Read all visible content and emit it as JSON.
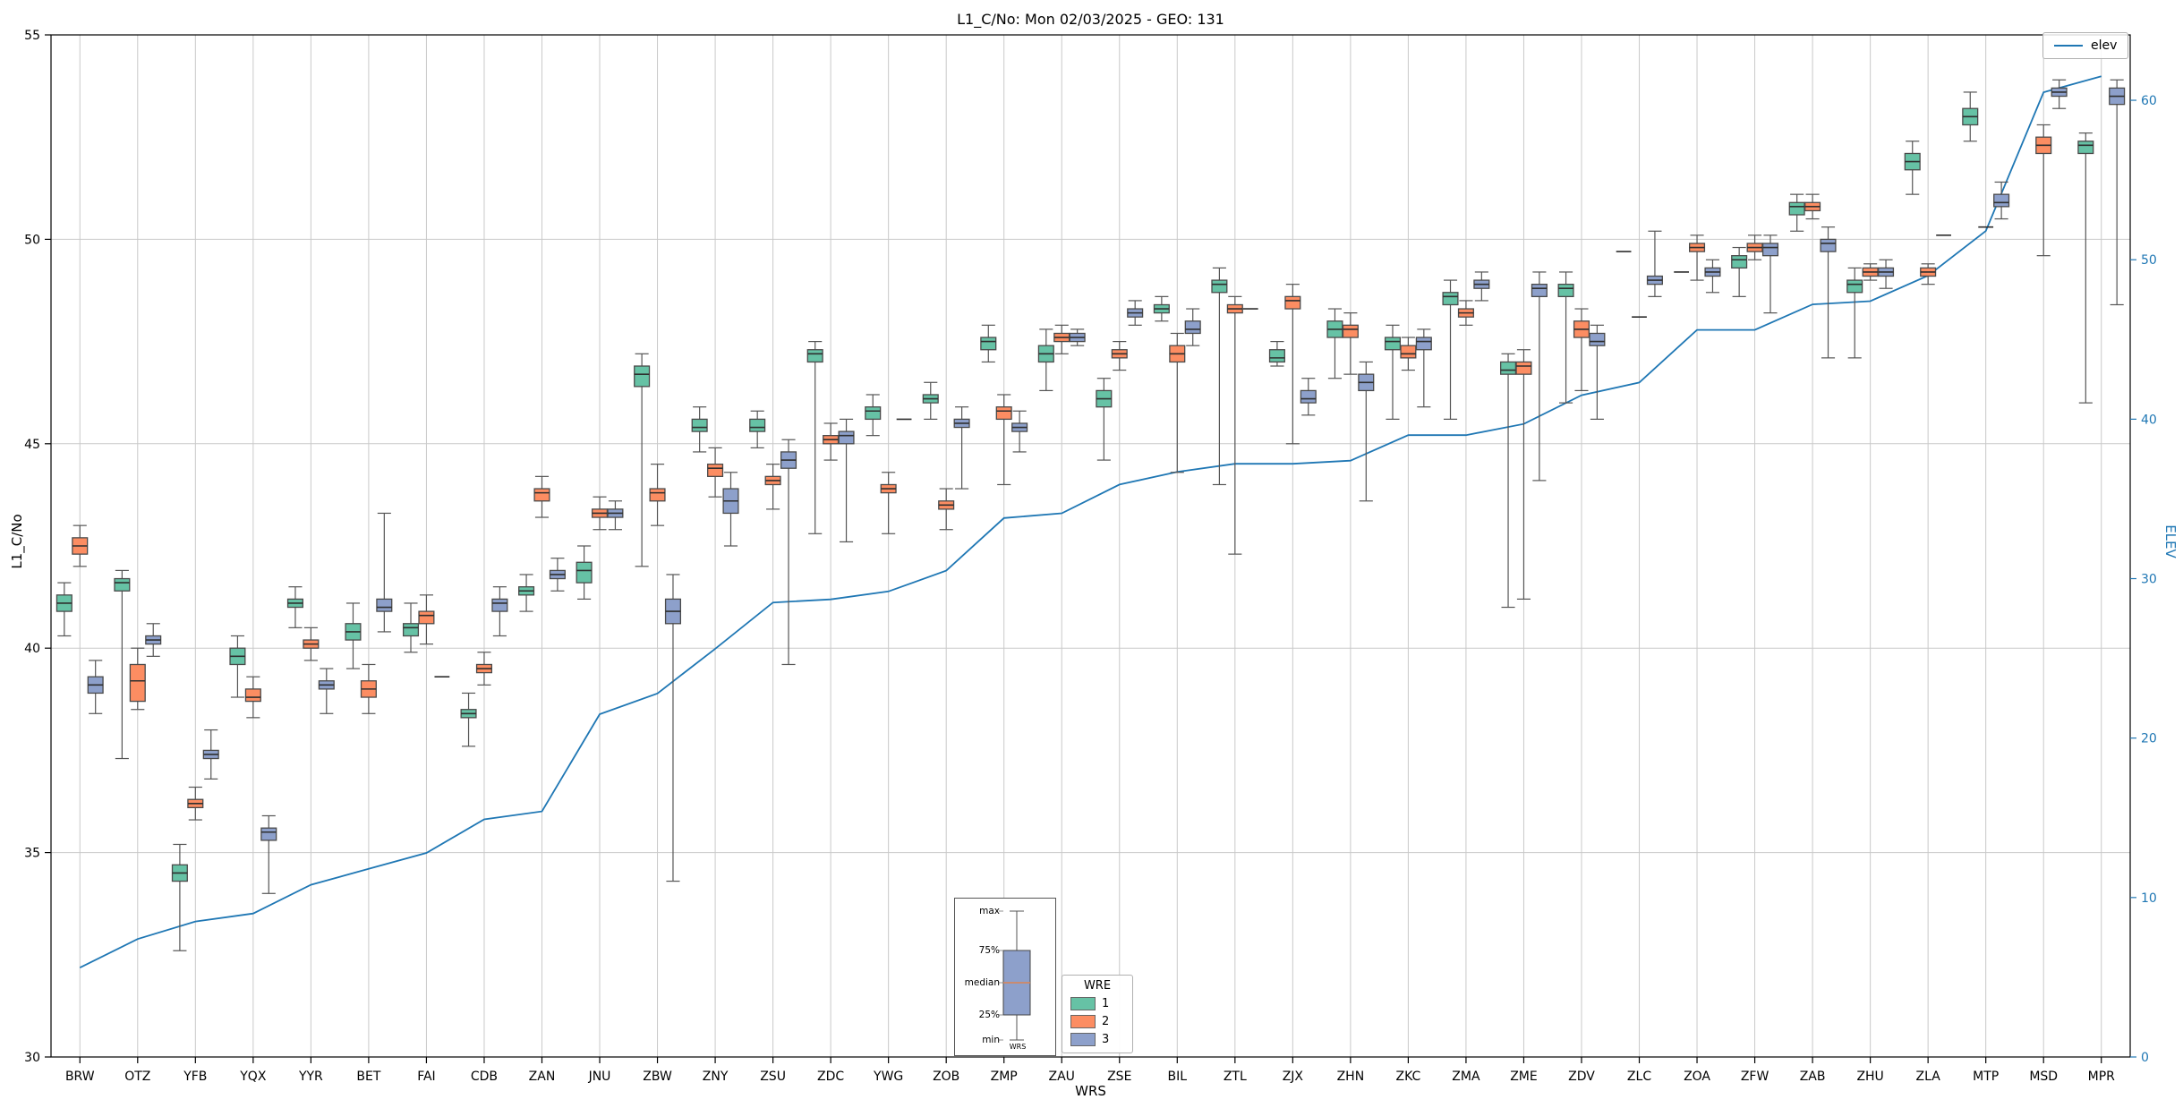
{
  "title": "L1_C/No: Mon 02/03/2025 - GEO: 131",
  "legend_elev": {
    "label": "elev"
  },
  "wre_legend": {
    "title": "WRE",
    "entries": [
      {
        "label": "1",
        "color": "#66c2a5"
      },
      {
        "label": "2",
        "color": "#fc8d62"
      },
      {
        "label": "3",
        "color": "#8da0cb"
      }
    ]
  },
  "inset": {
    "labels": {
      "max": "max",
      "p75": "75%",
      "median": "median",
      "p25": "25%",
      "min": "min"
    },
    "xlabel": "WRS",
    "box_color": "#8da0cb",
    "median_color": "#dd8452"
  },
  "colors": {
    "grid": "#c9c9c9",
    "frame": "#000000",
    "right_axis": "#1f77b4",
    "box_edge": "#4a4a4a",
    "median": "#2f2f2f",
    "whisker": "#555555"
  },
  "chart_data": {
    "type": "boxplot",
    "title": "L1_C/No: Mon 02/03/2025 - GEO: 131",
    "xlabel": "WRS",
    "ylabel": "L1_C/No",
    "y2label": "ELEV",
    "ylim": [
      30,
      55
    ],
    "yticks": [
      30,
      35,
      40,
      45,
      50,
      55
    ],
    "y2lim": [
      0,
      64.1
    ],
    "y2ticks": [
      0,
      10,
      20,
      30,
      40,
      50,
      60
    ],
    "grid": true,
    "legend_position": "lower center / upper right",
    "categories": [
      "BRW",
      "OTZ",
      "YFB",
      "YQX",
      "YYR",
      "BET",
      "FAI",
      "CDB",
      "ZAN",
      "JNU",
      "ZBW",
      "ZNY",
      "ZSU",
      "ZDC",
      "YWG",
      "ZOB",
      "ZMP",
      "ZAU",
      "ZSE",
      "BIL",
      "ZTL",
      "ZJX",
      "ZHN",
      "ZKC",
      "ZMA",
      "ZME",
      "ZDV",
      "ZLC",
      "ZOA",
      "ZFW",
      "ZAB",
      "ZHU",
      "ZLA",
      "MTP",
      "MSD",
      "MPR"
    ],
    "series": [
      {
        "name": "1",
        "color": "#66c2a5"
      },
      {
        "name": "2",
        "color": "#fc8d62"
      },
      {
        "name": "3",
        "color": "#8da0cb"
      }
    ],
    "line_series": {
      "name": "elev",
      "color": "#1f77b4",
      "axis": "right",
      "values": [
        5.6,
        7.4,
        8.5,
        9.0,
        10.8,
        11.8,
        12.8,
        14.9,
        15.4,
        21.5,
        22.8,
        25.6,
        28.5,
        28.7,
        29.2,
        30.5,
        33.8,
        34.1,
        35.9,
        36.7,
        37.2,
        37.2,
        37.4,
        39.0,
        39.0,
        39.7,
        41.5,
        42.3,
        45.6,
        45.6,
        47.2,
        47.4,
        49.0,
        51.8,
        60.5,
        61.5
      ]
    },
    "boxes": {
      "columns": [
        "category",
        "wre",
        "whisker_low",
        "q1",
        "median",
        "q3",
        "whisker_high"
      ],
      "rows": [
        [
          "BRW",
          1,
          40.3,
          40.9,
          41.1,
          41.3,
          41.6
        ],
        [
          "BRW",
          2,
          42.0,
          42.3,
          42.5,
          42.7,
          43.0
        ],
        [
          "BRW",
          3,
          38.4,
          38.9,
          39.1,
          39.3,
          39.7
        ],
        [
          "OTZ",
          1,
          37.3,
          41.4,
          41.6,
          41.7,
          41.9
        ],
        [
          "OTZ",
          2,
          38.5,
          38.7,
          39.2,
          39.6,
          40.0
        ],
        [
          "OTZ",
          3,
          39.8,
          40.1,
          40.2,
          40.3,
          40.6
        ],
        [
          "YFB",
          1,
          32.6,
          34.3,
          34.5,
          34.7,
          35.2
        ],
        [
          "YFB",
          2,
          35.8,
          36.1,
          36.2,
          36.3,
          36.6
        ],
        [
          "YFB",
          3,
          36.8,
          37.3,
          37.4,
          37.5,
          38.0
        ],
        [
          "YQX",
          1,
          38.8,
          39.6,
          39.8,
          40.0,
          40.3
        ],
        [
          "YQX",
          2,
          38.3,
          38.7,
          38.8,
          39.0,
          39.3
        ],
        [
          "YQX",
          3,
          34.0,
          35.3,
          35.5,
          35.6,
          35.9
        ],
        [
          "YYR",
          1,
          40.5,
          41.0,
          41.1,
          41.2,
          41.5
        ],
        [
          "YYR",
          2,
          39.7,
          40.0,
          40.1,
          40.2,
          40.5
        ],
        [
          "YYR",
          3,
          38.4,
          39.0,
          39.1,
          39.2,
          39.5
        ],
        [
          "BET",
          1,
          39.5,
          40.2,
          40.4,
          40.6,
          41.1
        ],
        [
          "BET",
          2,
          38.4,
          38.8,
          39.0,
          39.2,
          39.6
        ],
        [
          "BET",
          3,
          40.4,
          40.9,
          41.0,
          41.2,
          43.3
        ],
        [
          "FAI",
          1,
          39.9,
          40.3,
          40.5,
          40.6,
          41.1
        ],
        [
          "FAI",
          2,
          40.1,
          40.6,
          40.8,
          40.9,
          41.3
        ],
        [
          "FAI",
          3,
          39.3,
          39.3,
          39.3,
          39.3,
          39.3
        ],
        [
          "CDB",
          1,
          37.6,
          38.3,
          38.4,
          38.5,
          38.9
        ],
        [
          "CDB",
          2,
          39.1,
          39.4,
          39.5,
          39.6,
          39.9
        ],
        [
          "CDB",
          3,
          40.3,
          40.9,
          41.1,
          41.2,
          41.5
        ],
        [
          "ZAN",
          1,
          40.9,
          41.3,
          41.4,
          41.5,
          41.8
        ],
        [
          "ZAN",
          2,
          43.2,
          43.6,
          43.8,
          43.9,
          44.2
        ],
        [
          "ZAN",
          3,
          41.4,
          41.7,
          41.8,
          41.9,
          42.2
        ],
        [
          "JNU",
          1,
          41.2,
          41.6,
          41.9,
          42.1,
          42.5
        ],
        [
          "JNU",
          2,
          42.9,
          43.2,
          43.3,
          43.4,
          43.7
        ],
        [
          "JNU",
          3,
          42.9,
          43.2,
          43.3,
          43.4,
          43.6
        ],
        [
          "ZBW",
          1,
          42.0,
          46.4,
          46.7,
          46.9,
          47.2
        ],
        [
          "ZBW",
          2,
          43.0,
          43.6,
          43.8,
          43.9,
          44.5
        ],
        [
          "ZBW",
          3,
          34.3,
          40.6,
          40.9,
          41.2,
          41.8
        ],
        [
          "ZNY",
          1,
          44.8,
          45.3,
          45.4,
          45.6,
          45.9
        ],
        [
          "ZNY",
          2,
          43.7,
          44.2,
          44.4,
          44.5,
          44.9
        ],
        [
          "ZNY",
          3,
          42.5,
          43.3,
          43.6,
          43.9,
          44.3
        ],
        [
          "ZSU",
          1,
          44.9,
          45.3,
          45.4,
          45.6,
          45.8
        ],
        [
          "ZSU",
          2,
          43.4,
          44.0,
          44.1,
          44.2,
          44.5
        ],
        [
          "ZSU",
          3,
          39.6,
          44.4,
          44.6,
          44.8,
          45.1
        ],
        [
          "ZDC",
          1,
          42.8,
          47.0,
          47.2,
          47.3,
          47.5
        ],
        [
          "ZDC",
          2,
          44.6,
          45.0,
          45.1,
          45.2,
          45.5
        ],
        [
          "ZDC",
          3,
          42.6,
          45.0,
          45.2,
          45.3,
          45.6
        ],
        [
          "YWG",
          1,
          45.2,
          45.6,
          45.8,
          45.9,
          46.2
        ],
        [
          "YWG",
          2,
          42.8,
          43.8,
          43.9,
          44.0,
          44.3
        ],
        [
          "YWG",
          3,
          45.6,
          45.6,
          45.6,
          45.6,
          45.6
        ],
        [
          "ZOB",
          1,
          45.6,
          46.0,
          46.1,
          46.2,
          46.5
        ],
        [
          "ZOB",
          2,
          42.9,
          43.4,
          43.5,
          43.6,
          43.9
        ],
        [
          "ZOB",
          3,
          43.9,
          45.4,
          45.5,
          45.6,
          45.9
        ],
        [
          "ZMP",
          1,
          47.0,
          47.3,
          47.5,
          47.6,
          47.9
        ],
        [
          "ZMP",
          2,
          44.0,
          45.6,
          45.8,
          45.9,
          46.2
        ],
        [
          "ZMP",
          3,
          44.8,
          45.3,
          45.4,
          45.5,
          45.8
        ],
        [
          "ZAU",
          1,
          46.3,
          47.0,
          47.2,
          47.4,
          47.8
        ],
        [
          "ZAU",
          2,
          47.2,
          47.5,
          47.6,
          47.7,
          47.9
        ],
        [
          "ZAU",
          3,
          47.4,
          47.5,
          47.6,
          47.7,
          47.8
        ],
        [
          "ZSE",
          1,
          44.6,
          45.9,
          46.1,
          46.3,
          46.6
        ],
        [
          "ZSE",
          2,
          46.8,
          47.1,
          47.2,
          47.3,
          47.5
        ],
        [
          "ZSE",
          3,
          47.9,
          48.1,
          48.2,
          48.3,
          48.5
        ],
        [
          "BIL",
          1,
          48.0,
          48.2,
          48.3,
          48.4,
          48.6
        ],
        [
          "BIL",
          2,
          44.3,
          47.0,
          47.2,
          47.4,
          47.7
        ],
        [
          "BIL",
          3,
          47.4,
          47.7,
          47.8,
          48.0,
          48.3
        ],
        [
          "ZTL",
          1,
          44.0,
          48.7,
          48.9,
          49.0,
          49.3
        ],
        [
          "ZTL",
          2,
          42.3,
          48.2,
          48.3,
          48.4,
          48.6
        ],
        [
          "ZTL",
          3,
          48.3,
          48.3,
          48.3,
          48.3,
          48.3
        ],
        [
          "ZJX",
          1,
          46.9,
          47.0,
          47.1,
          47.3,
          47.5
        ],
        [
          "ZJX",
          2,
          45.0,
          48.3,
          48.5,
          48.6,
          48.9
        ],
        [
          "ZJX",
          3,
          45.7,
          46.0,
          46.1,
          46.3,
          46.6
        ],
        [
          "ZHN",
          1,
          46.6,
          47.6,
          47.8,
          48.0,
          48.3
        ],
        [
          "ZHN",
          2,
          46.7,
          47.6,
          47.8,
          47.9,
          48.2
        ],
        [
          "ZHN",
          3,
          43.6,
          46.3,
          46.5,
          46.7,
          47.0
        ],
        [
          "ZKC",
          1,
          45.6,
          47.3,
          47.5,
          47.6,
          47.9
        ],
        [
          "ZKC",
          2,
          46.8,
          47.1,
          47.2,
          47.4,
          47.6
        ],
        [
          "ZKC",
          3,
          45.9,
          47.3,
          47.5,
          47.6,
          47.8
        ],
        [
          "ZMA",
          1,
          45.6,
          48.4,
          48.6,
          48.7,
          49.0
        ],
        [
          "ZMA",
          2,
          47.9,
          48.1,
          48.2,
          48.3,
          48.5
        ],
        [
          "ZMA",
          3,
          48.5,
          48.8,
          48.9,
          49.0,
          49.2
        ],
        [
          "ZME",
          1,
          41.0,
          46.7,
          46.8,
          47.0,
          47.2
        ],
        [
          "ZME",
          2,
          41.2,
          46.7,
          46.9,
          47.0,
          47.3
        ],
        [
          "ZME",
          3,
          44.1,
          48.6,
          48.8,
          48.9,
          49.2
        ],
        [
          "ZDV",
          1,
          46.0,
          48.6,
          48.8,
          48.9,
          49.2
        ],
        [
          "ZDV",
          2,
          46.3,
          47.6,
          47.8,
          48.0,
          48.3
        ],
        [
          "ZDV",
          3,
          45.6,
          47.4,
          47.5,
          47.7,
          47.9
        ],
        [
          "ZLC",
          1,
          49.7,
          49.7,
          49.7,
          49.7,
          49.7
        ],
        [
          "ZLC",
          2,
          48.1,
          48.1,
          48.1,
          48.1,
          48.1
        ],
        [
          "ZLC",
          3,
          48.6,
          48.9,
          49.0,
          49.1,
          50.2
        ],
        [
          "ZOA",
          1,
          49.2,
          49.2,
          49.2,
          49.2,
          49.2
        ],
        [
          "ZOA",
          2,
          49.0,
          49.7,
          49.8,
          49.9,
          50.1
        ],
        [
          "ZOA",
          3,
          48.7,
          49.1,
          49.2,
          49.3,
          49.5
        ],
        [
          "ZFW",
          1,
          48.6,
          49.3,
          49.5,
          49.6,
          49.8
        ],
        [
          "ZFW",
          2,
          49.5,
          49.7,
          49.8,
          49.9,
          50.1
        ],
        [
          "ZFW",
          3,
          48.2,
          49.6,
          49.8,
          49.9,
          50.1
        ],
        [
          "ZAB",
          1,
          50.2,
          50.6,
          50.8,
          50.9,
          51.1
        ],
        [
          "ZAB",
          2,
          50.5,
          50.7,
          50.8,
          50.9,
          51.1
        ],
        [
          "ZAB",
          3,
          47.1,
          49.7,
          49.9,
          50.0,
          50.3
        ],
        [
          "ZHU",
          1,
          47.1,
          48.7,
          48.9,
          49.0,
          49.3
        ],
        [
          "ZHU",
          2,
          49.0,
          49.1,
          49.2,
          49.3,
          49.4
        ],
        [
          "ZHU",
          3,
          48.8,
          49.1,
          49.2,
          49.3,
          49.5
        ],
        [
          "ZLA",
          1,
          51.1,
          51.7,
          51.9,
          52.1,
          52.4
        ],
        [
          "ZLA",
          2,
          48.9,
          49.1,
          49.2,
          49.3,
          49.4
        ],
        [
          "ZLA",
          3,
          50.1,
          50.1,
          50.1,
          50.1,
          50.1
        ],
        [
          "MTP",
          1,
          52.4,
          52.8,
          53.0,
          53.2,
          53.6
        ],
        [
          "MTP",
          2,
          50.3,
          50.3,
          50.3,
          50.3,
          50.3
        ],
        [
          "MTP",
          3,
          50.5,
          50.8,
          50.9,
          51.1,
          51.4
        ],
        [
          "MSD",
          2,
          49.6,
          52.1,
          52.3,
          52.5,
          52.8
        ],
        [
          "MSD",
          3,
          53.2,
          53.5,
          53.6,
          53.7,
          53.9
        ],
        [
          "MPR",
          1,
          46.0,
          52.1,
          52.3,
          52.4,
          52.6
        ],
        [
          "MPR",
          3,
          48.4,
          53.3,
          53.5,
          53.7,
          53.9
        ]
      ]
    }
  }
}
